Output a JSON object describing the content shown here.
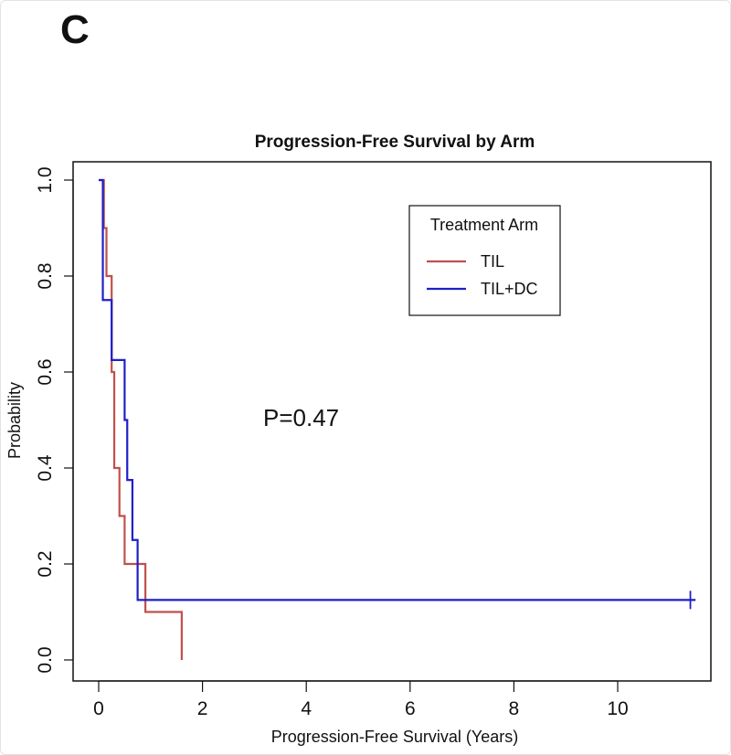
{
  "panel_letter": "C",
  "chart_data": {
    "type": "line",
    "title": "Progression-Free Survival by Arm",
    "xlabel": "Progression-Free Survival (Years)",
    "ylabel": "Probability",
    "xlim": [
      0,
      12
    ],
    "ylim": [
      0,
      1.0
    ],
    "x_ticks": [
      0,
      2,
      4,
      6,
      8,
      10
    ],
    "y_ticks": [
      0.0,
      0.2,
      0.4,
      0.6,
      0.8,
      1.0
    ],
    "x_tick_labels": [
      "0",
      "2",
      "4",
      "6",
      "8",
      "10"
    ],
    "y_tick_labels": [
      "0.0",
      "0.2",
      "0.4",
      "0.6",
      "0.8",
      "1.0"
    ],
    "grid": false,
    "legend": {
      "title": "Treatment Arm",
      "position": "top-right"
    },
    "annotation": "P=0.47",
    "series": [
      {
        "name": "TIL",
        "color": "#c0504d",
        "steps": [
          [
            0.0,
            1.0
          ],
          [
            0.1,
            0.9
          ],
          [
            0.15,
            0.8
          ],
          [
            0.25,
            0.6
          ],
          [
            0.3,
            0.4
          ],
          [
            0.4,
            0.3
          ],
          [
            0.5,
            0.2
          ],
          [
            0.9,
            0.1
          ],
          [
            1.6,
            0.0
          ]
        ]
      },
      {
        "name": "TIL+DC",
        "color": "#1f1fc8",
        "steps": [
          [
            0.0,
            1.0
          ],
          [
            0.08,
            0.75
          ],
          [
            0.25,
            0.625
          ],
          [
            0.5,
            0.5
          ],
          [
            0.55,
            0.375
          ],
          [
            0.65,
            0.25
          ],
          [
            0.75,
            0.125
          ]
        ],
        "end_x": 11.5,
        "censor": [
          [
            11.4,
            0.125
          ]
        ]
      }
    ]
  }
}
